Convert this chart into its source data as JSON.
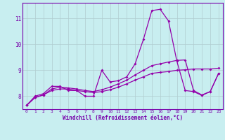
{
  "background_color": "#c8eef0",
  "grid_color": "#b0ccd0",
  "line_color": "#9400aa",
  "marker": "D",
  "marker_size": 2.0,
  "xlabel": "Windchill (Refroidissement éolien,°C)",
  "tick_color": "#7700aa",
  "xlim": [
    -0.5,
    23.5
  ],
  "ylim": [
    7.5,
    11.6
  ],
  "yticks": [
    8,
    9,
    10,
    11
  ],
  "xticks": [
    0,
    1,
    2,
    3,
    4,
    5,
    6,
    7,
    8,
    9,
    10,
    11,
    12,
    13,
    14,
    15,
    16,
    17,
    18,
    19,
    20,
    21,
    22,
    23
  ],
  "line1_x": [
    0,
    1,
    2,
    3,
    4,
    5,
    6,
    7,
    8,
    9,
    10,
    11,
    12,
    13,
    14,
    15,
    16,
    17,
    18,
    19,
    20,
    21,
    22,
    23
  ],
  "line1_y": [
    7.65,
    8.0,
    8.1,
    8.38,
    8.38,
    8.22,
    8.22,
    8.0,
    8.0,
    9.0,
    8.55,
    8.6,
    8.75,
    9.25,
    10.2,
    11.3,
    11.35,
    10.9,
    9.35,
    8.22,
    8.18,
    8.03,
    8.18,
    8.88
  ],
  "line2_x": [
    0,
    1,
    2,
    3,
    4,
    5,
    6,
    7,
    8,
    9,
    10,
    11,
    12,
    13,
    14,
    15,
    16,
    17,
    18,
    19,
    20,
    21,
    22,
    23
  ],
  "line2_y": [
    7.65,
    7.95,
    8.05,
    8.22,
    8.28,
    8.28,
    8.22,
    8.18,
    8.14,
    8.18,
    8.25,
    8.35,
    8.48,
    8.62,
    8.75,
    8.88,
    8.92,
    8.95,
    9.0,
    9.02,
    9.05,
    9.05,
    9.05,
    9.08
  ],
  "line3_x": [
    0,
    1,
    2,
    3,
    4,
    5,
    6,
    7,
    8,
    9,
    10,
    11,
    12,
    13,
    14,
    15,
    16,
    17,
    18,
    19,
    20,
    21,
    22,
    23
  ],
  "line3_y": [
    7.65,
    7.95,
    8.05,
    8.28,
    8.35,
    8.32,
    8.28,
    8.22,
    8.18,
    8.25,
    8.35,
    8.48,
    8.62,
    8.82,
    9.0,
    9.18,
    9.25,
    9.32,
    9.38,
    9.4,
    8.22,
    8.05,
    8.18,
    8.88
  ],
  "lw": 0.9
}
